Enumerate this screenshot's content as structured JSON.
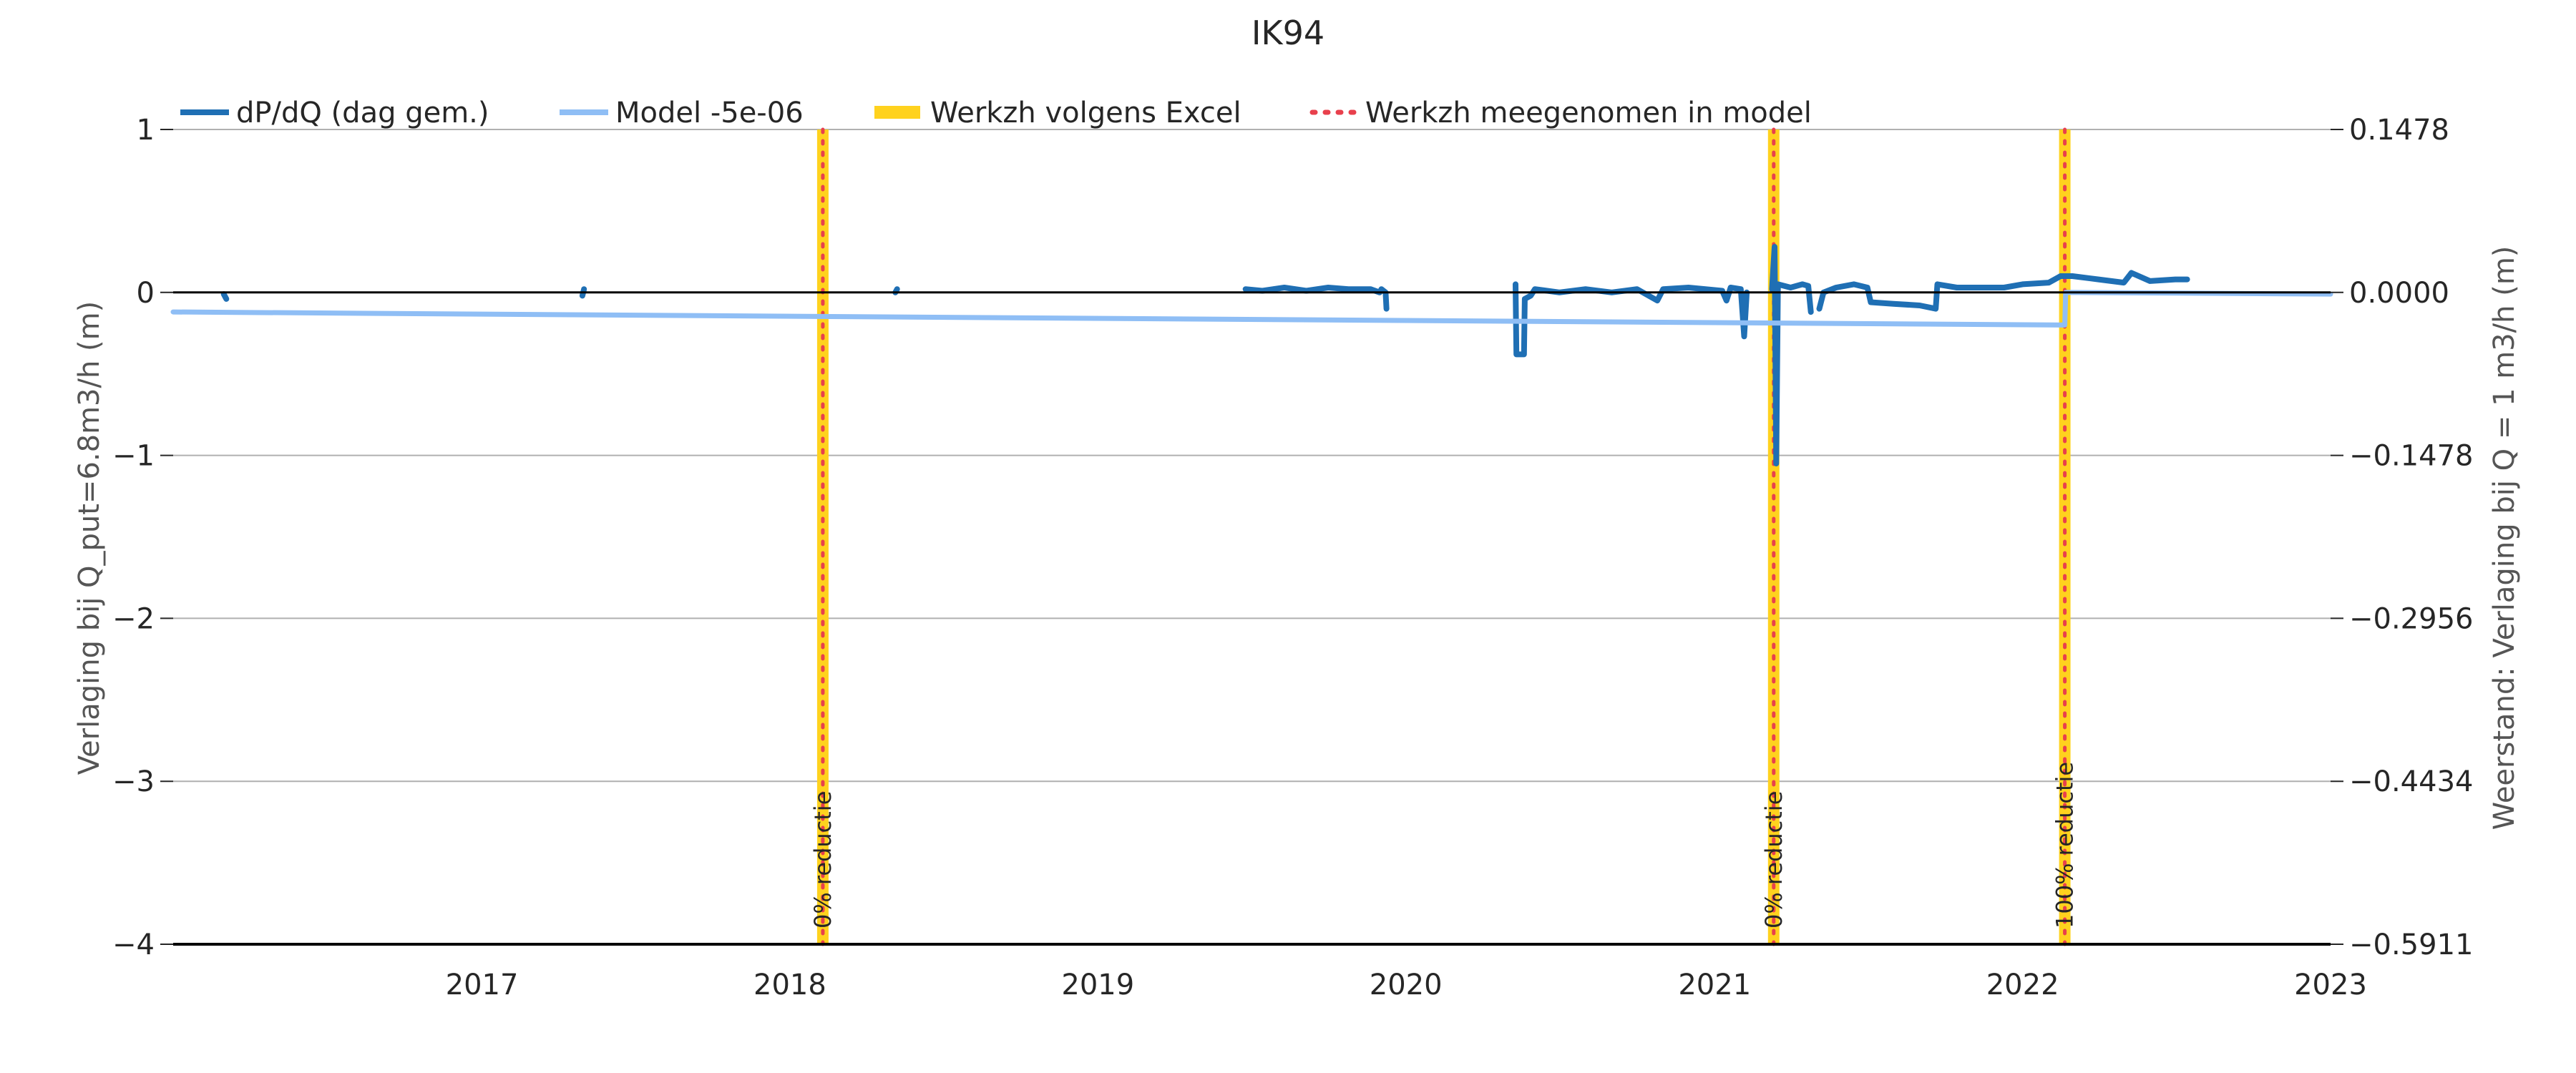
{
  "chart_data": {
    "type": "line",
    "title": "IK94",
    "xlabel": "",
    "ylabel": "Verlaging bij Q_put=6.8m3/h (m)",
    "ylabel_right": "Weerstand: Verlaging bij Q = 1 m3/h (m)",
    "xlim": [
      "2016-01-01",
      "2023-01-01"
    ],
    "ylim": [
      -4,
      1
    ],
    "x_ticks": [
      {
        "date": "2017-01-01",
        "label": "2017"
      },
      {
        "date": "2018-01-01",
        "label": "2018"
      },
      {
        "date": "2019-01-01",
        "label": "2019"
      },
      {
        "date": "2020-01-01",
        "label": "2020"
      },
      {
        "date": "2021-01-01",
        "label": "2021"
      },
      {
        "date": "2022-01-01",
        "label": "2022"
      },
      {
        "date": "2023-01-01",
        "label": "2023"
      }
    ],
    "y_ticks": [
      {
        "value": 1,
        "label": "1"
      },
      {
        "value": 0,
        "label": "0"
      },
      {
        "value": -1,
        "label": "−1"
      },
      {
        "value": -2,
        "label": "−2"
      },
      {
        "value": -3,
        "label": "−3"
      },
      {
        "value": -4,
        "label": "−4"
      }
    ],
    "y_ticks_right": [
      {
        "value": 1,
        "label": "0.1478"
      },
      {
        "value": 0,
        "label": "0.0000"
      },
      {
        "value": -1,
        "label": "−0.1478"
      },
      {
        "value": -2,
        "label": "−0.2956"
      },
      {
        "value": -3,
        "label": "−0.4434"
      },
      {
        "value": -4,
        "label": "−0.5911"
      }
    ],
    "grid": true,
    "legend_position": "top-left",
    "legend": [
      {
        "label": "dP/dQ (dag gem.)",
        "style": "line",
        "color": "#1f6fb4"
      },
      {
        "label": "Model -5e-06",
        "style": "line",
        "color": "#8fbef5"
      },
      {
        "label": "Werkzh volgens Excel",
        "style": "band",
        "color": "#ffd21e"
      },
      {
        "label": "Werkzh meegenomen in model",
        "style": "dotted",
        "color": "#e8404c"
      }
    ],
    "series": [
      {
        "name": "dP/dQ (dag gem.)",
        "color": "#1f6fb4",
        "segments": [
          [
            [
              "2016-03-01",
              -0.01
            ],
            [
              "2016-03-04",
              -0.04
            ]
          ],
          [
            [
              "2017-04-30",
              -0.02
            ],
            [
              "2017-05-02",
              0.02
            ]
          ],
          [
            [
              "2018-05-06",
              0.0
            ],
            [
              "2018-05-08",
              0.02
            ]
          ],
          [
            [
              "2019-06-25",
              0.02
            ],
            [
              "2019-07-15",
              0.01
            ],
            [
              "2019-08-10",
              0.03
            ],
            [
              "2019-09-05",
              0.01
            ],
            [
              "2019-10-01",
              0.03
            ],
            [
              "2019-10-25",
              0.02
            ],
            [
              "2019-11-20",
              0.02
            ],
            [
              "2019-12-01",
              0.0
            ],
            [
              "2019-12-03",
              0.02
            ],
            [
              "2019-12-08",
              0.0
            ],
            [
              "2019-12-09",
              -0.1
            ]
          ],
          [
            [
              "2020-05-10",
              0.05
            ],
            [
              "2020-05-11",
              -0.38
            ],
            [
              "2020-05-20",
              -0.38
            ],
            [
              "2020-05-21",
              -0.04
            ],
            [
              "2020-05-28",
              -0.02
            ],
            [
              "2020-06-02",
              0.02
            ],
            [
              "2020-07-01",
              0.0
            ],
            [
              "2020-08-01",
              0.02
            ],
            [
              "2020-09-01",
              0.0
            ],
            [
              "2020-10-01",
              0.02
            ],
            [
              "2020-10-25",
              -0.05
            ],
            [
              "2020-11-01",
              0.02
            ],
            [
              "2020-12-01",
              0.03
            ],
            [
              "2021-01-10",
              0.01
            ],
            [
              "2021-01-15",
              -0.05
            ],
            [
              "2021-01-20",
              0.03
            ],
            [
              "2021-02-01",
              0.02
            ],
            [
              "2021-02-05",
              -0.27
            ],
            [
              "2021-02-08",
              0.0
            ]
          ],
          [
            [
              "2021-03-10",
              0.02
            ],
            [
              "2021-03-13",
              0.28
            ],
            [
              "2021-03-15",
              -1.05
            ],
            [
              "2021-03-17",
              0.05
            ],
            [
              "2021-04-01",
              0.03
            ],
            [
              "2021-04-15",
              0.05
            ],
            [
              "2021-04-22",
              0.04
            ],
            [
              "2021-04-25",
              -0.12
            ]
          ],
          [
            [
              "2021-05-05",
              -0.1
            ],
            [
              "2021-05-10",
              0.0
            ],
            [
              "2021-05-25",
              0.03
            ],
            [
              "2021-06-15",
              0.05
            ],
            [
              "2021-07-01",
              0.03
            ],
            [
              "2021-07-05",
              -0.06
            ],
            [
              "2021-08-01",
              -0.07
            ],
            [
              "2021-09-01",
              -0.08
            ],
            [
              "2021-09-20",
              -0.1
            ],
            [
              "2021-09-22",
              0.05
            ],
            [
              "2021-10-15",
              0.03
            ],
            [
              "2021-11-15",
              0.03
            ],
            [
              "2021-12-10",
              0.03
            ],
            [
              "2022-01-01",
              0.05
            ],
            [
              "2022-02-01",
              0.06
            ],
            [
              "2022-02-15",
              0.1
            ],
            [
              "2022-03-01",
              0.1
            ],
            [
              "2022-04-01",
              0.08
            ],
            [
              "2022-05-01",
              0.06
            ],
            [
              "2022-05-10",
              0.12
            ],
            [
              "2022-06-01",
              0.07
            ],
            [
              "2022-07-01",
              0.08
            ],
            [
              "2022-07-15",
              0.08
            ]
          ]
        ]
      },
      {
        "name": "Model -5e-06",
        "color": "#8fbef5",
        "segments": [
          [
            [
              "2016-01-01",
              -0.12
            ],
            [
              "2022-02-20",
              -0.2
            ],
            [
              "2022-02-21",
              0.0
            ],
            [
              "2023-01-01",
              -0.01
            ]
          ]
        ]
      }
    ],
    "events": [
      {
        "date": "2018-02-09",
        "label": "0% reductie"
      },
      {
        "date": "2021-03-12",
        "label": "0% reductie"
      },
      {
        "date": "2022-02-20",
        "label": "100% reductie"
      }
    ],
    "colors": {
      "excel_band": "#ffd21e",
      "model_marker": "#e8404c",
      "zero_line": "#000000",
      "grid": "#b0b0b0"
    }
  }
}
